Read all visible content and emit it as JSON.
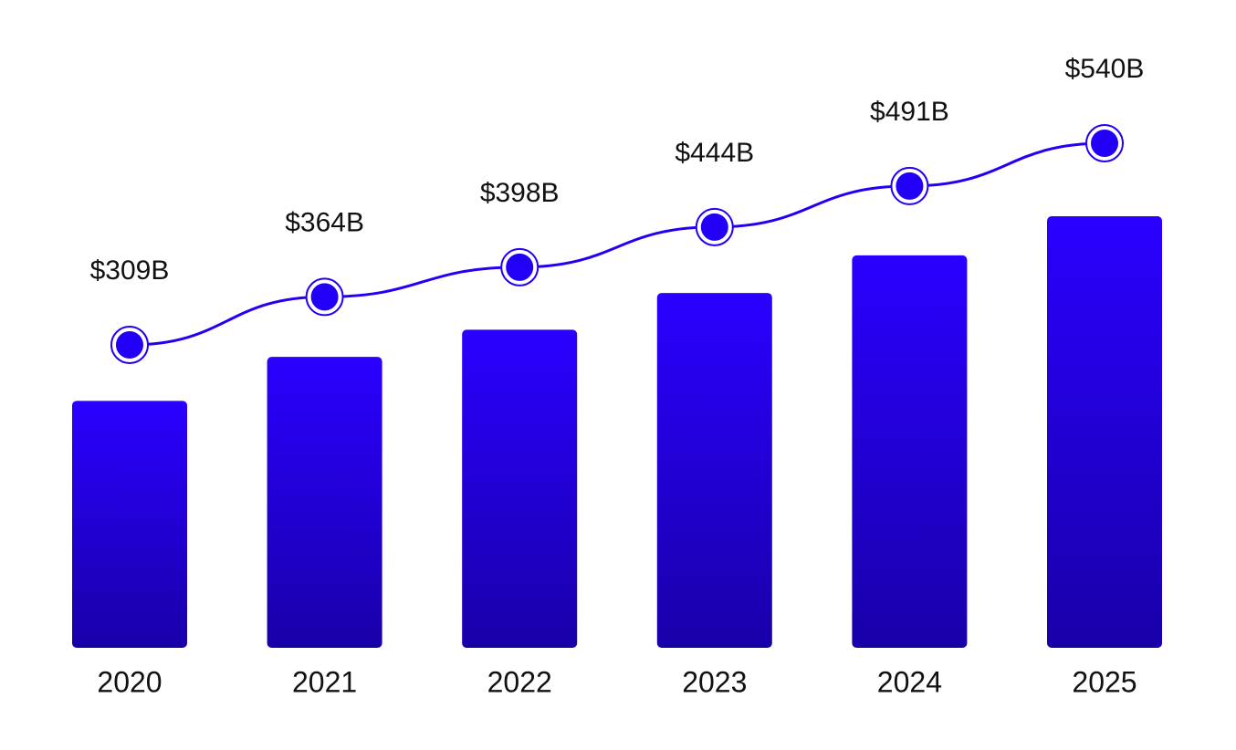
{
  "chart_data": {
    "type": "combo",
    "categories": [
      "2020",
      "2021",
      "2022",
      "2023",
      "2024",
      "2025"
    ],
    "values": [
      309,
      364,
      398,
      444,
      491,
      540
    ],
    "value_labels": [
      "$309B",
      "$364B",
      "$398B",
      "$444B",
      "$491B",
      "$540B"
    ],
    "color": "#2200f5"
  }
}
